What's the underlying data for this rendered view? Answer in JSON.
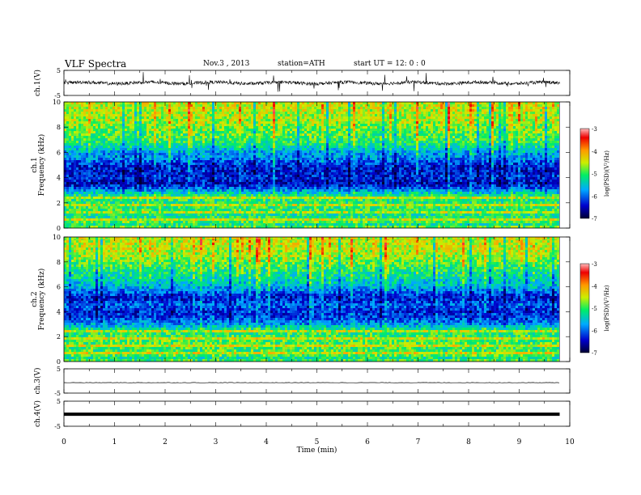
{
  "header": {
    "title": "VLF  Spectra",
    "date": "Nov.3  , 2013",
    "station": "station=ATH",
    "start_ut": "start  UT  =    12: 0  : 0"
  },
  "chart_data": {
    "type": "heatmap",
    "x_axis": {
      "label": "Time  (min)",
      "range": [
        0,
        10
      ],
      "ticks": [
        "0",
        "1",
        "2",
        "3",
        "4",
        "5",
        "6",
        "7",
        "8",
        "9",
        "10"
      ],
      "data_end_min": 9.8
    },
    "panels": [
      {
        "id": "ch1-wave",
        "type": "line",
        "ylabel": "ch.1(V)",
        "ylim": [
          -5,
          5
        ],
        "ticks": [
          "5",
          "-5"
        ]
      },
      {
        "id": "ch1-spec",
        "type": "heatmap",
        "ylabel": "ch.1\nFrequency  (kHz)",
        "ylim": [
          0,
          10
        ],
        "ticks": [
          "0",
          "2",
          "4",
          "6",
          "8",
          "10"
        ]
      },
      {
        "id": "ch2-spec",
        "type": "heatmap",
        "ylabel": "ch.2\nFrequency  (kHz)",
        "ylim": [
          0,
          10
        ],
        "ticks": [
          "0",
          "2",
          "4",
          "6",
          "8",
          "10"
        ]
      },
      {
        "id": "ch3-wave",
        "type": "line",
        "ylabel": "ch.3(V)",
        "ylim": [
          -5,
          5
        ],
        "ticks": [
          "5",
          "-5"
        ]
      },
      {
        "id": "ch4-wave",
        "type": "line",
        "ylabel": "ch.4(V)",
        "ylim": [
          -5,
          5
        ],
        "ticks": [
          "5",
          "-5"
        ]
      }
    ],
    "colorbar": {
      "label": "log(PSD)(V²/Hz)",
      "range": [
        -7,
        -3
      ],
      "ticks": [
        "-3",
        "-4",
        "-5",
        "-6",
        "-7"
      ],
      "colors": [
        "#000033",
        "#0000cc",
        "#00aaff",
        "#00ee66",
        "#ccee00",
        "#ff9900",
        "#ee0000",
        "#ffbbbb"
      ]
    },
    "spectral_profile": {
      "freq_khz": [
        0,
        0.5,
        1,
        1.5,
        2,
        2.5,
        3,
        3.5,
        4,
        4.5,
        5,
        5.5,
        6,
        6.5,
        7,
        7.5,
        8,
        8.5,
        9,
        9.5,
        10
      ],
      "ch1_logpsd": [
        -5.5,
        -4.9,
        -5.2,
        -5.0,
        -5.1,
        -5.0,
        -5.8,
        -6.5,
        -6.3,
        -6.4,
        -6.3,
        -5.9,
        -5.7,
        -5.3,
        -5.0,
        -4.9,
        -4.8,
        -4.6,
        -4.6,
        -4.5,
        -4.5
      ],
      "ch2_logpsd": [
        -5.6,
        -4.9,
        -5.0,
        -4.9,
        -5.0,
        -5.1,
        -5.8,
        -6.2,
        -6.3,
        -6.0,
        -6.4,
        -6.0,
        -5.6,
        -5.4,
        -5.2,
        -5.0,
        -4.8,
        -4.6,
        -4.5,
        -4.5,
        -4.5
      ]
    }
  }
}
